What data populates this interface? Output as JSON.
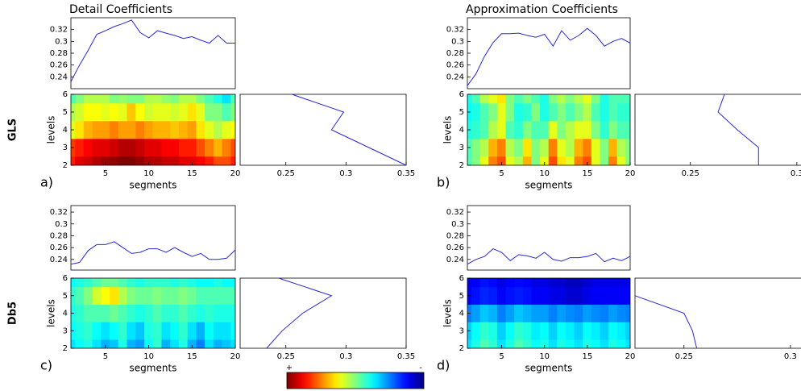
{
  "chart_data": [
    {
      "type": "line",
      "title": "Detail Coefficients",
      "x": [
        1,
        2,
        3,
        4,
        5,
        6,
        7,
        8,
        9,
        10,
        11,
        12,
        13,
        14,
        15,
        16,
        17,
        18,
        19,
        20
      ],
      "values": [
        0.232,
        0.26,
        0.285,
        0.312,
        0.318,
        0.325,
        0.33,
        0.336,
        0.315,
        0.306,
        0.318,
        0.314,
        0.31,
        0.305,
        0.308,
        0.302,
        0.297,
        0.31,
        0.297,
        0.297
      ],
      "color": "#2828d8",
      "xlim": [
        1,
        20
      ],
      "ylim": [
        0.22,
        0.34
      ],
      "yticks": [
        0.24,
        0.26,
        0.28,
        0.3,
        0.32
      ]
    },
    {
      "type": "heatmap",
      "label": "a)",
      "xlabel": "segments",
      "ylabel": "levels",
      "row_label": "GLS",
      "x": [
        1,
        2,
        3,
        4,
        5,
        6,
        7,
        8,
        9,
        10,
        11,
        12,
        13,
        14,
        15,
        16,
        17,
        18,
        19,
        20
      ],
      "levels": [
        2,
        3,
        4,
        5,
        6
      ],
      "z": [
        [
          0.85,
          0.9,
          0.92,
          0.95,
          0.97,
          0.98,
          1,
          1,
          0.98,
          0.95,
          0.95,
          0.93,
          0.93,
          0.9,
          0.9,
          0.88,
          0.85,
          0.8,
          0.8,
          0.85
        ],
        [
          0.82,
          0.85,
          0.88,
          0.9,
          0.9,
          0.92,
          0.95,
          0.95,
          0.93,
          0.9,
          0.9,
          0.88,
          0.88,
          0.85,
          0.85,
          0.8,
          0.75,
          0.7,
          0.75,
          0.8
        ],
        [
          0.6,
          0.65,
          0.7,
          0.72,
          0.72,
          0.75,
          0.72,
          0.72,
          0.75,
          0.72,
          0.7,
          0.7,
          0.68,
          0.7,
          0.72,
          0.65,
          0.6,
          0.55,
          0.6,
          0.62
        ],
        [
          0.55,
          0.58,
          0.62,
          0.62,
          0.6,
          0.62,
          0.6,
          0.68,
          0.62,
          0.58,
          0.6,
          0.6,
          0.58,
          0.6,
          0.65,
          0.6,
          0.5,
          0.5,
          0.45,
          0.5
        ],
        [
          0.45,
          0.5,
          0.55,
          0.55,
          0.55,
          0.5,
          0.52,
          0.5,
          0.5,
          0.55,
          0.55,
          0.52,
          0.5,
          0.55,
          0.55,
          0.5,
          0.45,
          0.4,
          0.35,
          0.45
        ]
      ],
      "zlim": [
        0,
        1
      ],
      "xlim": [
        1,
        20
      ],
      "ylim": [
        2,
        6
      ],
      "xticks": [
        5,
        10,
        15,
        20
      ],
      "yticks": [
        2,
        3,
        4,
        5,
        6
      ]
    },
    {
      "type": "profile",
      "levels": [
        6,
        5,
        4,
        3,
        2
      ],
      "values": [
        0.255,
        0.298,
        0.288,
        0.319,
        0.35
      ],
      "color": "#2828d8",
      "xlim": [
        0.212,
        0.35
      ],
      "ylim": [
        2,
        6
      ],
      "xticks": [
        0.25,
        0.3,
        0.35
      ]
    },
    {
      "type": "line",
      "title": "Approximation Coefficients",
      "x": [
        1,
        2,
        3,
        4,
        5,
        6,
        7,
        8,
        9,
        10,
        11,
        12,
        13,
        14,
        15,
        16,
        17,
        18,
        19,
        20
      ],
      "values": [
        0.225,
        0.245,
        0.275,
        0.298,
        0.313,
        0.313,
        0.314,
        0.31,
        0.307,
        0.312,
        0.292,
        0.318,
        0.302,
        0.31,
        0.322,
        0.31,
        0.292,
        0.3,
        0.305,
        0.297
      ],
      "color": "#2828d8",
      "xlim": [
        1,
        20
      ],
      "ylim": [
        0.22,
        0.34
      ],
      "yticks": [
        0.24,
        0.26,
        0.28,
        0.3,
        0.32
      ]
    },
    {
      "type": "heatmap",
      "label": "b)",
      "xlabel": "segments",
      "ylabel": "levels",
      "x": [
        1,
        2,
        3,
        4,
        5,
        6,
        7,
        8,
        9,
        10,
        11,
        12,
        13,
        14,
        15,
        16,
        17,
        18,
        19,
        20
      ],
      "levels": [
        2,
        3,
        4,
        5,
        6
      ],
      "z": [
        [
          0.45,
          0.5,
          0.6,
          0.75,
          0.8,
          0.6,
          0.55,
          0.7,
          0.5,
          0.6,
          0.8,
          0.65,
          0.6,
          0.75,
          0.8,
          0.6,
          0.5,
          0.75,
          0.6,
          0.5
        ],
        [
          0.45,
          0.5,
          0.55,
          0.7,
          0.75,
          0.55,
          0.5,
          0.65,
          0.5,
          0.55,
          0.75,
          0.6,
          0.55,
          0.7,
          0.75,
          0.6,
          0.5,
          0.7,
          0.55,
          0.5
        ],
        [
          0.4,
          0.42,
          0.45,
          0.55,
          0.6,
          0.45,
          0.42,
          0.5,
          0.45,
          0.45,
          0.6,
          0.5,
          0.55,
          0.6,
          0.6,
          0.5,
          0.42,
          0.5,
          0.45,
          0.45
        ],
        [
          0.38,
          0.4,
          0.45,
          0.5,
          0.6,
          0.5,
          0.4,
          0.42,
          0.5,
          0.4,
          0.45,
          0.5,
          0.45,
          0.5,
          0.55,
          0.45,
          0.4,
          0.45,
          0.42,
          0.42
        ],
        [
          0.4,
          0.45,
          0.55,
          0.6,
          0.65,
          0.5,
          0.45,
          0.5,
          0.45,
          0.4,
          0.5,
          0.55,
          0.5,
          0.55,
          0.6,
          0.5,
          0.4,
          0.45,
          0.45,
          0.45
        ]
      ],
      "zlim": [
        0,
        1
      ],
      "xlim": [
        1,
        20
      ],
      "ylim": [
        2,
        6
      ],
      "xticks": [
        5,
        10,
        15,
        20
      ],
      "yticks": [
        2,
        3,
        4,
        5,
        6
      ]
    },
    {
      "type": "profile",
      "levels": [
        6,
        5,
        4,
        3,
        2
      ],
      "values": [
        0.266,
        0.263,
        0.272,
        0.282,
        0.282
      ],
      "color": "#2828d8",
      "xlim": [
        0.224,
        0.35
      ],
      "ylim": [
        2,
        6
      ],
      "xticks": [
        0.25,
        0.3
      ]
    },
    {
      "type": "line",
      "x": [
        1,
        2,
        3,
        4,
        5,
        6,
        7,
        8,
        9,
        10,
        11,
        12,
        13,
        14,
        15,
        16,
        17,
        18,
        19,
        20
      ],
      "values": [
        0.232,
        0.235,
        0.255,
        0.265,
        0.265,
        0.27,
        0.26,
        0.25,
        0.252,
        0.258,
        0.258,
        0.252,
        0.26,
        0.252,
        0.245,
        0.25,
        0.24,
        0.24,
        0.242,
        0.256
      ],
      "color": "#2828d8",
      "xlim": [
        1,
        20
      ],
      "ylim": [
        0.222,
        0.331
      ],
      "yticks": [
        0.24,
        0.26,
        0.28,
        0.3,
        0.32
      ]
    },
    {
      "type": "heatmap",
      "label": "c)",
      "xlabel": "segments",
      "ylabel": "levels",
      "row_label": "Db5",
      "x": [
        1,
        2,
        3,
        4,
        5,
        6,
        7,
        8,
        9,
        10,
        11,
        12,
        13,
        14,
        15,
        16,
        17,
        18,
        19,
        20
      ],
      "levels": [
        2,
        3,
        4,
        5,
        6
      ],
      "z": [
        [
          0.35,
          0.38,
          0.4,
          0.35,
          0.3,
          0.32,
          0.4,
          0.3,
          0.28,
          0.38,
          0.42,
          0.3,
          0.35,
          0.4,
          0.3,
          0.25,
          0.35,
          0.3,
          0.32,
          0.35
        ],
        [
          0.38,
          0.4,
          0.42,
          0.38,
          0.35,
          0.38,
          0.42,
          0.35,
          0.32,
          0.4,
          0.42,
          0.35,
          0.38,
          0.42,
          0.35,
          0.3,
          0.38,
          0.35,
          0.35,
          0.38
        ],
        [
          0.4,
          0.42,
          0.45,
          0.45,
          0.45,
          0.48,
          0.45,
          0.42,
          0.4,
          0.42,
          0.45,
          0.42,
          0.42,
          0.45,
          0.42,
          0.4,
          0.42,
          0.4,
          0.4,
          0.4
        ],
        [
          0.42,
          0.45,
          0.5,
          0.58,
          0.62,
          0.65,
          0.55,
          0.5,
          0.48,
          0.48,
          0.5,
          0.48,
          0.48,
          0.5,
          0.48,
          0.45,
          0.45,
          0.45,
          0.45,
          0.45
        ],
        [
          0.38,
          0.4,
          0.42,
          0.45,
          0.48,
          0.48,
          0.45,
          0.42,
          0.4,
          0.42,
          0.42,
          0.42,
          0.4,
          0.42,
          0.4,
          0.38,
          0.38,
          0.4,
          0.38,
          0.38
        ]
      ],
      "zlim": [
        0,
        1
      ],
      "xlim": [
        1,
        20
      ],
      "ylim": [
        2,
        6
      ],
      "xticks": [
        5,
        10,
        15,
        20
      ],
      "yticks": [
        2,
        3,
        4,
        5,
        6
      ]
    },
    {
      "type": "profile",
      "levels": [
        6,
        5,
        4,
        3,
        2
      ],
      "values": [
        0.244,
        0.288,
        0.264,
        0.247,
        0.234
      ],
      "color": "#2828d8",
      "xlim": [
        0.212,
        0.35
      ],
      "ylim": [
        2,
        6
      ],
      "xticks": [
        0.25,
        0.3,
        0.35
      ]
    },
    {
      "type": "line",
      "x": [
        1,
        2,
        3,
        4,
        5,
        6,
        7,
        8,
        9,
        10,
        11,
        12,
        13,
        14,
        15,
        16,
        17,
        18,
        19,
        20
      ],
      "values": [
        0.232,
        0.24,
        0.245,
        0.258,
        0.252,
        0.238,
        0.248,
        0.246,
        0.242,
        0.252,
        0.24,
        0.237,
        0.243,
        0.243,
        0.245,
        0.25,
        0.236,
        0.242,
        0.238,
        0.245
      ],
      "color": "#2828d8",
      "xlim": [
        1,
        20
      ],
      "ylim": [
        0.222,
        0.331
      ],
      "yticks": [
        0.24,
        0.26,
        0.28,
        0.3,
        0.32
      ]
    },
    {
      "type": "heatmap",
      "label": "d)",
      "xlabel": "segments",
      "ylabel": "levels",
      "x": [
        1,
        2,
        3,
        4,
        5,
        6,
        7,
        8,
        9,
        10,
        11,
        12,
        13,
        14,
        15,
        16,
        17,
        18,
        19,
        20
      ],
      "levels": [
        2,
        3,
        4,
        5,
        6
      ],
      "z": [
        [
          0.35,
          0.4,
          0.45,
          0.42,
          0.35,
          0.4,
          0.45,
          0.42,
          0.38,
          0.4,
          0.35,
          0.4,
          0.38,
          0.35,
          0.4,
          0.38,
          0.35,
          0.4,
          0.38,
          0.35
        ],
        [
          0.33,
          0.38,
          0.42,
          0.4,
          0.33,
          0.38,
          0.42,
          0.4,
          0.36,
          0.38,
          0.33,
          0.38,
          0.36,
          0.33,
          0.38,
          0.36,
          0.33,
          0.38,
          0.36,
          0.33
        ],
        [
          0.25,
          0.28,
          0.32,
          0.3,
          0.25,
          0.28,
          0.32,
          0.3,
          0.28,
          0.28,
          0.25,
          0.28,
          0.26,
          0.25,
          0.28,
          0.26,
          0.25,
          0.28,
          0.26,
          0.25
        ],
        [
          0.12,
          0.14,
          0.16,
          0.15,
          0.12,
          0.14,
          0.15,
          0.14,
          0.12,
          0.12,
          0.1,
          0.1,
          0.08,
          0.08,
          0.1,
          0.12,
          0.12,
          0.12,
          0.12,
          0.12
        ],
        [
          0.1,
          0.12,
          0.14,
          0.13,
          0.1,
          0.12,
          0.13,
          0.12,
          0.1,
          0.1,
          0.08,
          0.08,
          0.06,
          0.06,
          0.08,
          0.1,
          0.1,
          0.1,
          0.1,
          0.1
        ]
      ],
      "zlim": [
        0,
        1
      ],
      "xlim": [
        1,
        20
      ],
      "ylim": [
        2,
        6
      ],
      "xticks": [
        5,
        10,
        15,
        20
      ],
      "yticks": [
        2,
        3,
        4,
        5,
        6
      ]
    },
    {
      "type": "profile",
      "levels": [
        6,
        5,
        4,
        3,
        2
      ],
      "values": [
        null,
        0.227,
        0.25,
        0.254,
        0.256
      ],
      "color": "#2828d8",
      "xlim": [
        0.227,
        0.35
      ],
      "ylim": [
        2,
        6
      ],
      "xticks": [
        0.25,
        0.3
      ]
    },
    {
      "type": "colorbar",
      "labels": [
        "+",
        "-"
      ],
      "zlim": [
        0,
        1
      ]
    }
  ]
}
